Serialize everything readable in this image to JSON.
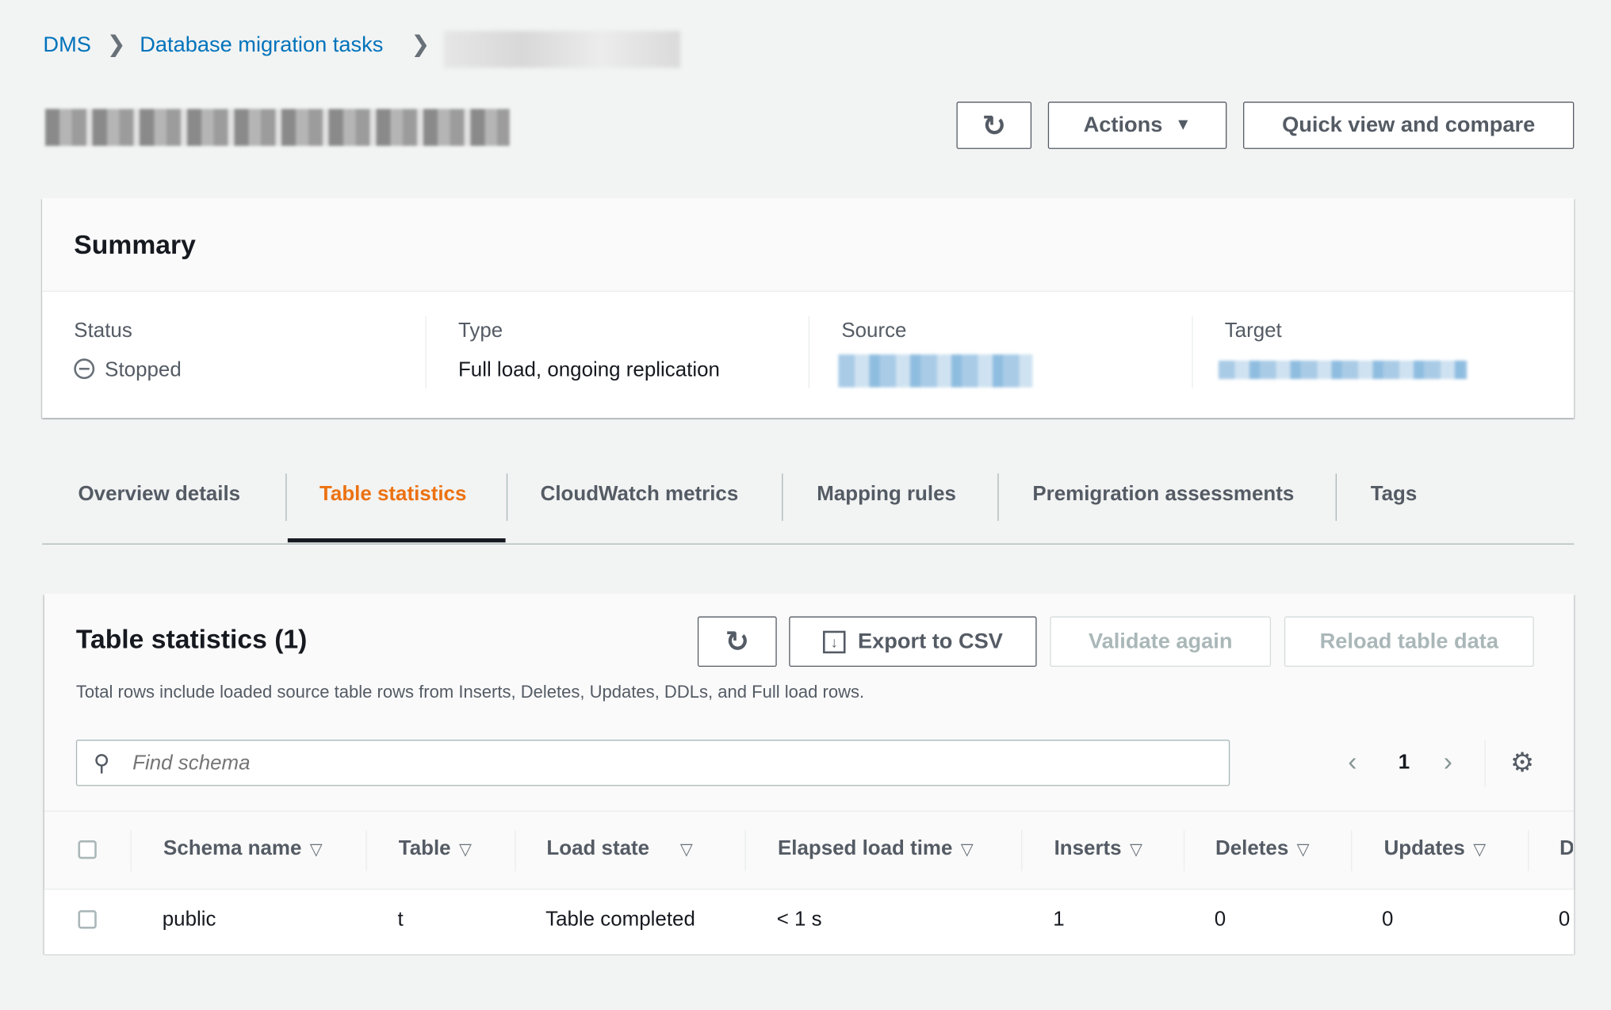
{
  "breadcrumb": {
    "items": [
      "DMS",
      "Database migration tasks"
    ]
  },
  "header": {
    "actions_label": "Actions",
    "quick_view_label": "Quick view and compare"
  },
  "summary": {
    "title": "Summary",
    "status_label": "Status",
    "status_value": "Stopped",
    "type_label": "Type",
    "type_value": "Full load, ongoing replication",
    "source_label": "Source",
    "target_label": "Target"
  },
  "tabs": [
    {
      "label": "Overview details",
      "active": false
    },
    {
      "label": "Table statistics",
      "active": true
    },
    {
      "label": "CloudWatch metrics",
      "active": false
    },
    {
      "label": "Mapping rules",
      "active": false
    },
    {
      "label": "Premigration assessments",
      "active": false
    },
    {
      "label": "Tags",
      "active": false
    }
  ],
  "table_stats": {
    "title": "Table statistics (1)",
    "export_label": "Export to CSV",
    "validate_label": "Validate again",
    "reload_label": "Reload table data",
    "description": "Total rows include loaded source table rows from Inserts, Deletes, Updates, DDLs, and Full load rows.",
    "search_placeholder": "Find schema",
    "page": "1",
    "columns": [
      "Schema name",
      "Table",
      "Load state",
      "Elapsed load time",
      "Inserts",
      "Deletes",
      "Updates",
      "D"
    ],
    "rows": [
      [
        "public",
        "t",
        "Table completed",
        "< 1 s",
        "1",
        "0",
        "0",
        "0"
      ]
    ]
  },
  "colors": {
    "link": "#0073bb",
    "active_tab": "#ec7211",
    "background": "#f2f3f3",
    "text": "#16191f"
  }
}
